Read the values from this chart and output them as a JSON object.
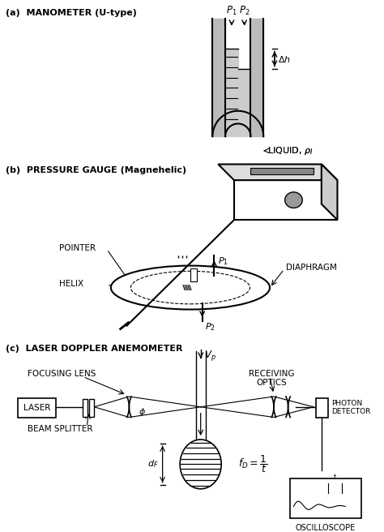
{
  "title_a": "(a)  MANOMETER (U-type)",
  "title_b": "(b)  PRESSURE GAUGE (Magnehelic)",
  "title_c": "(c)  LASER DOPPLER ANEMOMETER",
  "bg_color": "#ffffff",
  "line_color": "#000000",
  "fig_width": 4.74,
  "fig_height": 6.56,
  "dpi": 100
}
